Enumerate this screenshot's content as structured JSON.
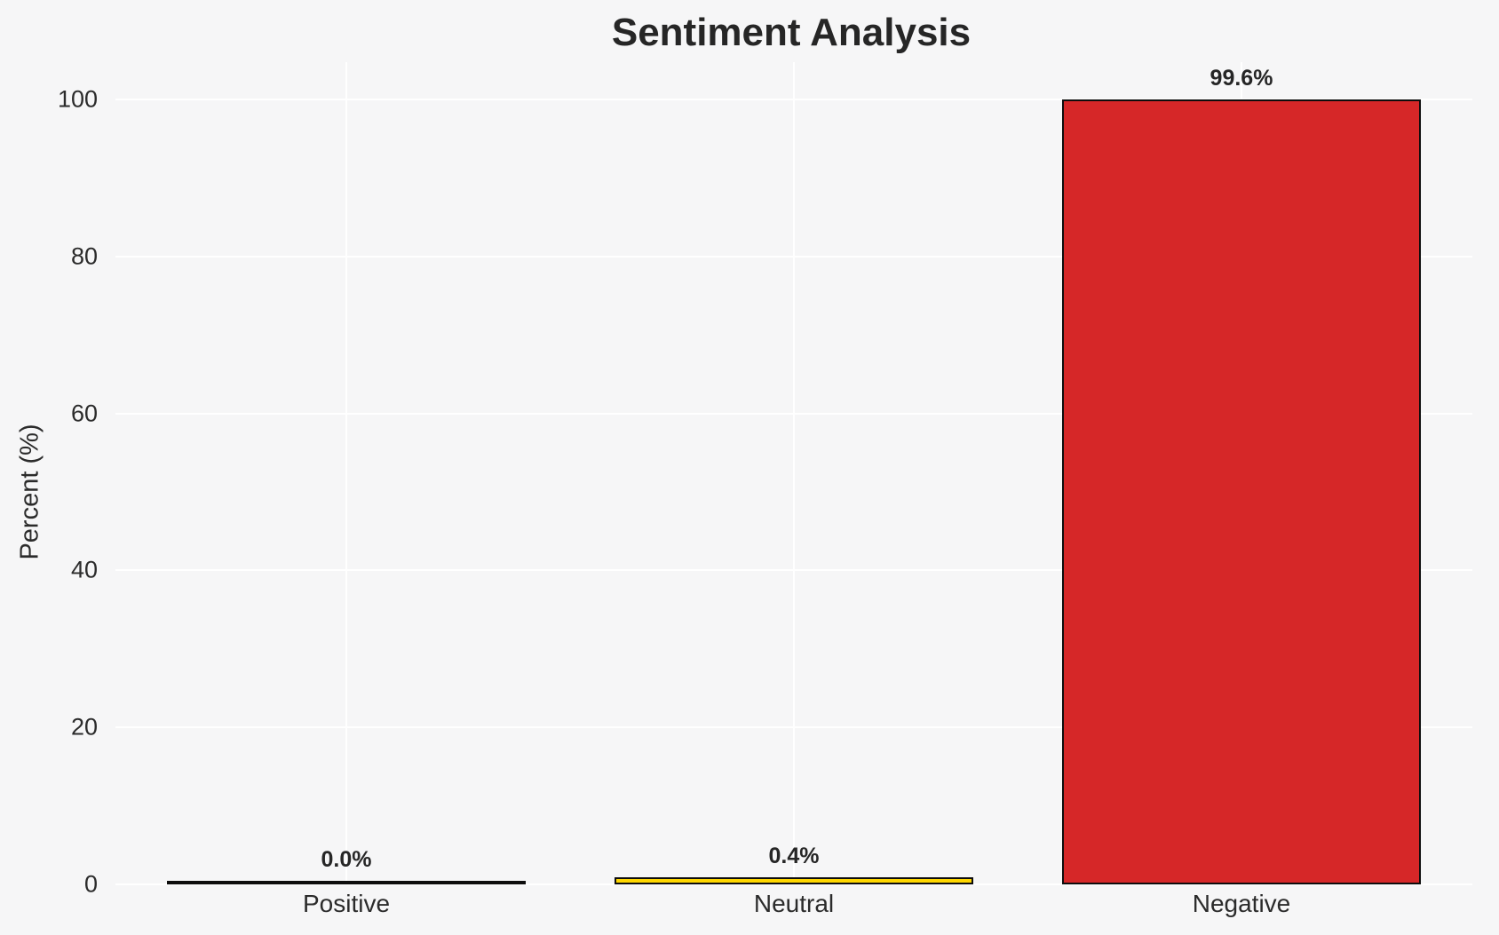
{
  "chart_data": {
    "type": "bar",
    "title": "Sentiment Analysis",
    "xlabel": "",
    "ylabel": "Percent (%)",
    "categories": [
      "Positive",
      "Neutral",
      "Negative"
    ],
    "values": [
      0.0,
      0.4,
      99.6
    ],
    "value_labels": [
      "0.0%",
      "0.4%",
      "99.6%"
    ],
    "bar_colors": [
      "#2ca02c",
      "#ffd700",
      "#d62728"
    ],
    "bar_edge_color": "#0d0d0d",
    "ylim": [
      0,
      100
    ],
    "yticks": [
      0,
      20,
      40,
      60,
      80,
      100
    ],
    "grid": true,
    "legend": "none",
    "background_color": "#f6f6f7",
    "gridline_color": "#ffffff",
    "text_color": "#2b2b2b"
  }
}
